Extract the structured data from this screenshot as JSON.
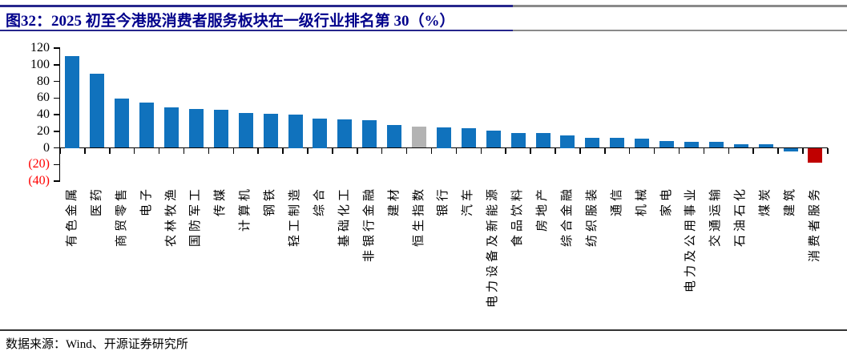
{
  "header": {
    "title": "图32：2025 初至今港股消费者服务板块在一级行业排名第 30（%）"
  },
  "footer": {
    "source": "数据来源：Wind、开源证券研究所"
  },
  "colors": {
    "bar_default": "#1072BD",
    "bar_index_highlight": "#B3B3B3",
    "bar_consumer_services": "#C00000",
    "negative_axis_label": "#FF0000",
    "title_navy": "#00008B",
    "header_rule_navy": "#26268C",
    "header_rule_gray": "#8a8a8a"
  },
  "chart_data": {
    "type": "bar",
    "title": "2025 初至今港股消费者服务板块在一级行业排名第 30（%）",
    "xlabel": "",
    "ylabel": "",
    "ylim": [
      -40,
      120
    ],
    "y_ticks": [
      120,
      100,
      80,
      60,
      40,
      20,
      0,
      -20,
      -40
    ],
    "negative_tick_style": "parentheses-red",
    "grid": false,
    "legend": false,
    "categories": [
      "有色金属",
      "医药",
      "商贸零售",
      "电子",
      "农林牧渔",
      "国防军工",
      "传媒",
      "计算机",
      "钢铁",
      "轻工制造",
      "综合",
      "基础化工",
      "非银行金融",
      "建材",
      "恒生指数",
      "银行",
      "汽车",
      "电力设备及新能源",
      "食品饮料",
      "房地产",
      "综合金融",
      "纺织服装",
      "通信",
      "机械",
      "家电",
      "电力及公用事业",
      "交通运输",
      "石油石化",
      "煤炭",
      "建筑",
      "消费者服务"
    ],
    "values": [
      110,
      89,
      59,
      54,
      49,
      47,
      46,
      42,
      41,
      40,
      35,
      34,
      33,
      27,
      26,
      25,
      24,
      21,
      18,
      18,
      15,
      12,
      12,
      11,
      8,
      7,
      7,
      4,
      4,
      -4,
      -18
    ],
    "color_overrides": {
      "恒生指数": "#B3B3B3",
      "消费者服务": "#C00000"
    }
  }
}
